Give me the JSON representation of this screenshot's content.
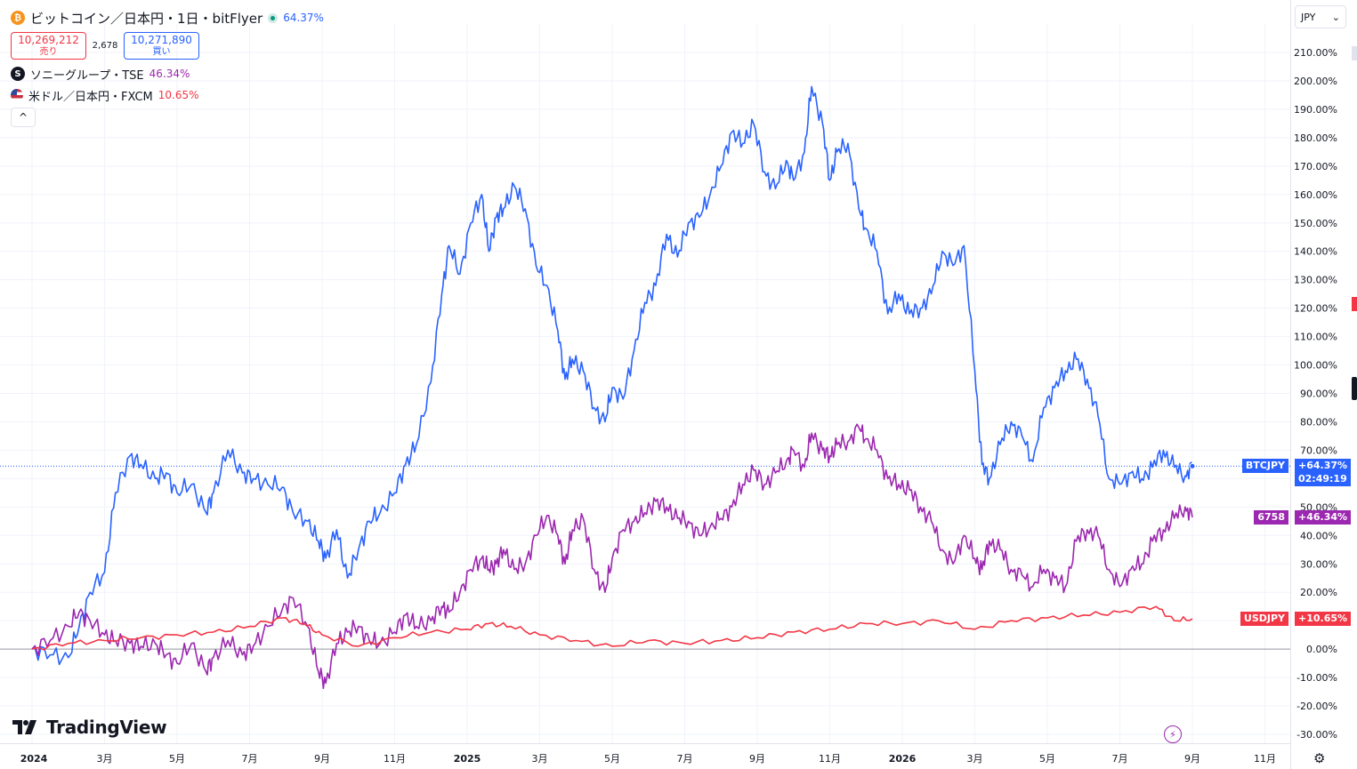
{
  "legend": {
    "main_title": "ビットコイン／日本円・1日・bitFlyer",
    "main_pct": "64.37%",
    "sell_price": "10,269,212",
    "sell_label": "売り",
    "spread": "2,678",
    "buy_price": "10,271,890",
    "buy_label": "買い",
    "sony_title": "ソニーグループ・TSE",
    "sony_pct": "46.34%",
    "usd_title": "米ドル／日本円・FXCM",
    "usd_pct": "10.65%",
    "collapse_glyph": "^"
  },
  "currency_select": {
    "value": "JPY",
    "arrow": "⌄"
  },
  "brand": {
    "name": "TradingView"
  },
  "bottom_icons": {
    "bolt": "⚡",
    "settings": "⚙"
  },
  "colors": {
    "btc": "#2962ff",
    "sony": "#9c27b0",
    "usd": "#f23645",
    "zero": "#9598a1",
    "grid": "#f0f3fa"
  },
  "chart_data": {
    "type": "line",
    "y_unit": "%",
    "ylim": [
      -30,
      210
    ],
    "yticks": [
      "210.00%",
      "200.00%",
      "190.00%",
      "180.00%",
      "170.00%",
      "160.00%",
      "150.00%",
      "140.00%",
      "130.00%",
      "120.00%",
      "110.00%",
      "100.00%",
      "90.00%",
      "80.00%",
      "70.00%",
      "60.00%",
      "50.00%",
      "40.00%",
      "30.00%",
      "20.00%",
      "10.00%",
      "0.00%",
      "-10.00%",
      "-20.00%",
      "-30.00%"
    ],
    "xticks": [
      "2024",
      "3月",
      "5月",
      "7月",
      "9月",
      "11月",
      "2025",
      "3月",
      "5月",
      "7月",
      "9月",
      "11月",
      "2026",
      "3月",
      "5月",
      "7月",
      "9月",
      "11月"
    ],
    "series": [
      {
        "name": "BTCJPY",
        "key": "btc",
        "tag_symbol": "BTCJPY",
        "tag_value": "+64.37%",
        "tag_time": "02:49:19",
        "last": 64.37,
        "points": [
          [
            0,
            0
          ],
          [
            0.5,
            -2
          ],
          [
            1,
            -3
          ],
          [
            1.3,
            8
          ],
          [
            1.6,
            20
          ],
          [
            2,
            27
          ],
          [
            2.3,
            55
          ],
          [
            2.7,
            68
          ],
          [
            3,
            65
          ],
          [
            3.4,
            60
          ],
          [
            3.7,
            62
          ],
          [
            4,
            55
          ],
          [
            4.4,
            58
          ],
          [
            4.8,
            48
          ],
          [
            5,
            55
          ],
          [
            5.4,
            70
          ],
          [
            5.8,
            62
          ],
          [
            6.1,
            60
          ],
          [
            6.5,
            58
          ],
          [
            6.9,
            57
          ],
          [
            7.2,
            48
          ],
          [
            7.6,
            45
          ],
          [
            7.9,
            38
          ],
          [
            8.1,
            32
          ],
          [
            8.4,
            42
          ],
          [
            8.7,
            25
          ],
          [
            9,
            35
          ],
          [
            9.3,
            45
          ],
          [
            9.6,
            48
          ],
          [
            10,
            55
          ],
          [
            10.3,
            65
          ],
          [
            10.6,
            72
          ],
          [
            11,
            94
          ],
          [
            11.3,
            125
          ],
          [
            11.5,
            142
          ],
          [
            11.8,
            132
          ],
          [
            12.1,
            150
          ],
          [
            12.4,
            160
          ],
          [
            12.6,
            140
          ],
          [
            12.8,
            152
          ],
          [
            13,
            155
          ],
          [
            13.3,
            163
          ],
          [
            13.6,
            155
          ],
          [
            13.9,
            135
          ],
          [
            14.2,
            128
          ],
          [
            14.5,
            112
          ],
          [
            14.7,
            95
          ],
          [
            14.9,
            102
          ],
          [
            15.2,
            98
          ],
          [
            15.5,
            85
          ],
          [
            15.8,
            80
          ],
          [
            16,
            92
          ],
          [
            16.3,
            88
          ],
          [
            16.6,
            105
          ],
          [
            16.9,
            122
          ],
          [
            17.2,
            128
          ],
          [
            17.5,
            146
          ],
          [
            17.8,
            138
          ],
          [
            18.1,
            150
          ],
          [
            18.4,
            152
          ],
          [
            18.7,
            160
          ],
          [
            19,
            170
          ],
          [
            19.3,
            182
          ],
          [
            19.6,
            178
          ],
          [
            19.9,
            185
          ],
          [
            20.2,
            168
          ],
          [
            20.5,
            162
          ],
          [
            20.8,
            172
          ],
          [
            21,
            165
          ],
          [
            21.3,
            175
          ],
          [
            21.5,
            198
          ],
          [
            21.8,
            185
          ],
          [
            22,
            165
          ],
          [
            22.2,
            175
          ],
          [
            22.5,
            178
          ],
          [
            22.8,
            155
          ],
          [
            23,
            148
          ],
          [
            23.3,
            140
          ],
          [
            23.6,
            118
          ],
          [
            23.9,
            125
          ],
          [
            24.2,
            118
          ],
          [
            24.5,
            120
          ],
          [
            24.8,
            125
          ],
          [
            25.1,
            140
          ],
          [
            25.4,
            135
          ],
          [
            25.7,
            142
          ],
          [
            26,
            98
          ],
          [
            26.2,
            65
          ],
          [
            26.4,
            60
          ],
          [
            26.7,
            72
          ],
          [
            27,
            80
          ],
          [
            27.3,
            75
          ],
          [
            27.6,
            66
          ],
          [
            27.9,
            85
          ],
          [
            28.2,
            92
          ],
          [
            28.5,
            98
          ],
          [
            28.8,
            102
          ],
          [
            29.1,
            95
          ],
          [
            29.4,
            82
          ],
          [
            29.7,
            60
          ],
          [
            30,
            58
          ],
          [
            30.3,
            62
          ],
          [
            30.6,
            60
          ],
          [
            30.9,
            64
          ],
          [
            31.2,
            70
          ],
          [
            31.5,
            64
          ],
          [
            31.8,
            61
          ],
          [
            32,
            64.37
          ]
        ]
      },
      {
        "name": "6758",
        "key": "sony",
        "tag_symbol": "6758",
        "tag_value": "+46.34%",
        "last": 46.34,
        "points": [
          [
            0,
            0
          ],
          [
            0.5,
            3
          ],
          [
            1,
            8
          ],
          [
            1.3,
            13
          ],
          [
            1.6,
            10
          ],
          [
            2,
            5
          ],
          [
            2.3,
            3
          ],
          [
            2.7,
            2
          ],
          [
            3,
            1
          ],
          [
            3.4,
            2
          ],
          [
            3.7,
            -2
          ],
          [
            4,
            -5
          ],
          [
            4.4,
            2
          ],
          [
            4.8,
            -8
          ],
          [
            5,
            -3
          ],
          [
            5.4,
            3
          ],
          [
            5.8,
            -2
          ],
          [
            6.1,
            1
          ],
          [
            6.5,
            8
          ],
          [
            6.9,
            14
          ],
          [
            7.2,
            18
          ],
          [
            7.6,
            8
          ],
          [
            7.9,
            -8
          ],
          [
            8.1,
            -12
          ],
          [
            8.4,
            2
          ],
          [
            8.7,
            6
          ],
          [
            9,
            8
          ],
          [
            9.3,
            3
          ],
          [
            9.6,
            2
          ],
          [
            10,
            6
          ],
          [
            10.3,
            12
          ],
          [
            10.6,
            8
          ],
          [
            11,
            10
          ],
          [
            11.3,
            15
          ],
          [
            11.5,
            13
          ],
          [
            11.8,
            20
          ],
          [
            12.1,
            28
          ],
          [
            12.4,
            32
          ],
          [
            12.6,
            28
          ],
          [
            12.8,
            30
          ],
          [
            13,
            35
          ],
          [
            13.3,
            28
          ],
          [
            13.6,
            30
          ],
          [
            13.9,
            40
          ],
          [
            14.2,
            47
          ],
          [
            14.5,
            40
          ],
          [
            14.7,
            30
          ],
          [
            14.9,
            42
          ],
          [
            15.2,
            46
          ],
          [
            15.5,
            28
          ],
          [
            15.8,
            20
          ],
          [
            16,
            32
          ],
          [
            16.3,
            42
          ],
          [
            16.6,
            45
          ],
          [
            16.9,
            48
          ],
          [
            17.2,
            52
          ],
          [
            17.5,
            50
          ],
          [
            17.8,
            46
          ],
          [
            18.1,
            45
          ],
          [
            18.4,
            40
          ],
          [
            18.7,
            43
          ],
          [
            19,
            46
          ],
          [
            19.3,
            50
          ],
          [
            19.6,
            58
          ],
          [
            19.9,
            63
          ],
          [
            20.2,
            58
          ],
          [
            20.5,
            62
          ],
          [
            20.8,
            66
          ],
          [
            21,
            70
          ],
          [
            21.3,
            64
          ],
          [
            21.5,
            76
          ],
          [
            21.8,
            70
          ],
          [
            22,
            68
          ],
          [
            22.2,
            72
          ],
          [
            22.5,
            73
          ],
          [
            22.8,
            78
          ],
          [
            23,
            74
          ],
          [
            23.3,
            70
          ],
          [
            23.6,
            60
          ],
          [
            23.9,
            58
          ],
          [
            24.2,
            56
          ],
          [
            24.5,
            50
          ],
          [
            24.8,
            45
          ],
          [
            25.1,
            35
          ],
          [
            25.4,
            30
          ],
          [
            25.7,
            40
          ],
          [
            26,
            32
          ],
          [
            26.2,
            28
          ],
          [
            26.4,
            38
          ],
          [
            26.7,
            35
          ],
          [
            27,
            28
          ],
          [
            27.3,
            26
          ],
          [
            27.6,
            22
          ],
          [
            27.9,
            28
          ],
          [
            28.2,
            25
          ],
          [
            28.5,
            22
          ],
          [
            28.8,
            38
          ],
          [
            29.1,
            42
          ],
          [
            29.4,
            40
          ],
          [
            29.7,
            28
          ],
          [
            30,
            22
          ],
          [
            30.3,
            28
          ],
          [
            30.6,
            30
          ],
          [
            30.9,
            38
          ],
          [
            31.2,
            42
          ],
          [
            31.5,
            46
          ],
          [
            31.8,
            50
          ],
          [
            32,
            46.34
          ]
        ]
      },
      {
        "name": "USDJPY",
        "key": "usd",
        "tag_symbol": "USDJPY",
        "tag_value": "+10.65%",
        "last": 10.65,
        "points": [
          [
            0,
            0
          ],
          [
            1,
            2
          ],
          [
            2,
            3
          ],
          [
            3,
            4
          ],
          [
            4,
            5
          ],
          [
            5,
            6
          ],
          [
            6,
            8
          ],
          [
            6.9,
            11
          ],
          [
            7.5,
            9
          ],
          [
            8,
            5
          ],
          [
            9,
            1
          ],
          [
            10,
            4
          ],
          [
            11,
            6
          ],
          [
            12,
            7
          ],
          [
            12.6,
            9
          ],
          [
            13.2,
            8
          ],
          [
            14,
            5
          ],
          [
            15,
            3
          ],
          [
            16,
            1
          ],
          [
            17,
            3
          ],
          [
            18,
            2
          ],
          [
            19,
            3
          ],
          [
            20,
            4
          ],
          [
            21,
            6
          ],
          [
            22,
            7
          ],
          [
            23,
            9
          ],
          [
            24,
            9
          ],
          [
            25,
            10
          ],
          [
            26,
            7
          ],
          [
            27,
            10
          ],
          [
            28,
            11
          ],
          [
            29,
            12
          ],
          [
            30,
            13
          ],
          [
            31,
            15
          ],
          [
            31.5,
            10
          ],
          [
            32,
            10.65
          ]
        ]
      }
    ],
    "x_domain": [
      0,
      36
    ],
    "grid": true
  }
}
